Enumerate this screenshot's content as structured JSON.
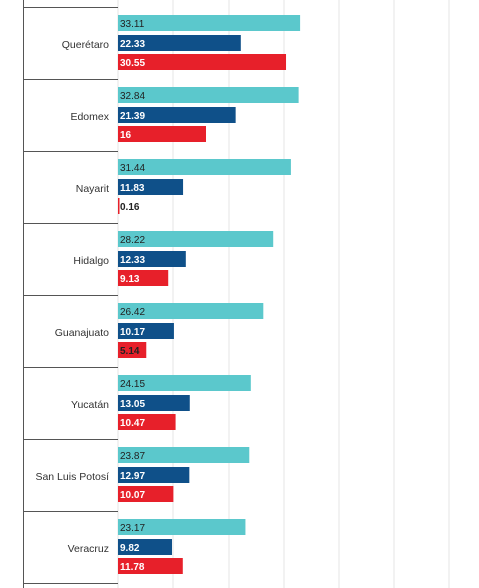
{
  "chart_data": {
    "type": "bar",
    "orientation": "horizontal",
    "categories": [
      "Querétaro",
      "Edomex",
      "Nayarit",
      "Hidalgo",
      "Guanajuato",
      "Yucatán",
      "San Luis Potosí",
      "Veracruz"
    ],
    "series": [
      {
        "color": "#5bc8cc",
        "values": [
          33.11,
          32.84,
          31.44,
          28.22,
          26.42,
          24.15,
          23.87,
          23.17
        ],
        "labels": [
          "33.11",
          "32.84",
          "31.44",
          "28.22",
          "26.42",
          "24.15",
          "23.87",
          "23.17"
        ]
      },
      {
        "color": "#0f5089",
        "values": [
          22.33,
          21.39,
          11.83,
          12.33,
          10.17,
          13.05,
          12.97,
          9.82
        ],
        "labels": [
          "22.33",
          "21.39",
          "11.83",
          "12.33",
          "10.17",
          "13.05",
          "12.97",
          "9.82"
        ]
      },
      {
        "color": "#e7202a",
        "values": [
          30.55,
          16,
          0.16,
          9.13,
          5.14,
          10.47,
          10.07,
          11.78
        ],
        "labels": [
          "30.55",
          "16",
          "0.16",
          "9.13",
          "5.14",
          "10.47",
          "10.07",
          "11.78"
        ]
      }
    ],
    "xlim": [
      0,
      65
    ],
    "grid": true,
    "legend": "none"
  }
}
